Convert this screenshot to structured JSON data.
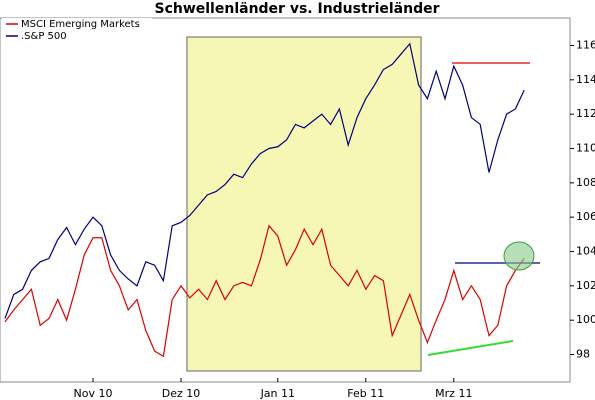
{
  "chart_data": {
    "type": "line",
    "title": "Schwellenländer vs. Industrieländer",
    "categories": [
      null,
      null,
      null,
      null,
      null,
      null,
      null,
      null,
      null,
      null,
      "Nov 10",
      null,
      null,
      null,
      null,
      null,
      null,
      null,
      null,
      null,
      "Dez 10",
      null,
      null,
      null,
      null,
      null,
      null,
      null,
      null,
      null,
      null,
      "Jan 11",
      null,
      null,
      null,
      null,
      null,
      null,
      null,
      null,
      null,
      "Feb 11",
      null,
      null,
      null,
      null,
      null,
      null,
      null,
      null,
      null,
      "Mrz 11",
      null,
      null,
      null,
      null,
      null,
      null,
      null,
      null
    ],
    "series": [
      {
        "name": "MSCI Emerging Markets",
        "color": "#dd0000",
        "values": [
          99.9,
          100.6,
          101.2,
          101.8,
          99.7,
          100.1,
          101.2,
          100.0,
          101.8,
          103.8,
          104.8,
          104.8,
          102.9,
          102.0,
          100.6,
          101.2,
          99.4,
          98.2,
          97.9,
          101.2,
          102.0,
          101.3,
          101.8,
          101.2,
          102.3,
          101.2,
          102.0,
          102.2,
          102.0,
          103.5,
          105.5,
          104.9,
          103.2,
          104.1,
          105.3,
          104.4,
          105.3,
          103.2,
          102.6,
          102.0,
          102.9,
          101.8,
          102.6,
          102.3,
          99.1,
          100.3,
          101.5,
          100.0,
          98.7,
          100.0,
          101.2,
          102.9,
          101.2,
          102.0,
          101.2,
          99.1,
          99.7,
          102.0,
          102.9,
          103.6
        ]
      },
      {
        "name": ".S&P 500",
        "color": "#000080",
        "values": [
          100.1,
          101.5,
          101.8,
          102.9,
          103.4,
          103.6,
          104.7,
          105.4,
          104.4,
          105.3,
          106.0,
          105.5,
          103.8,
          102.9,
          102.4,
          102.0,
          103.4,
          103.2,
          102.3,
          105.5,
          105.7,
          106.1,
          106.7,
          107.3,
          107.5,
          107.9,
          108.5,
          108.3,
          109.1,
          109.7,
          110.0,
          110.1,
          110.5,
          111.4,
          111.2,
          111.6,
          112.0,
          111.4,
          112.3,
          110.2,
          111.8,
          112.9,
          113.7,
          114.6,
          114.9,
          115.5,
          116.1,
          113.7,
          112.9,
          114.5,
          112.9,
          114.8,
          113.7,
          111.8,
          111.4,
          108.6,
          110.5,
          112.0,
          112.3,
          113.4
        ]
      }
    ],
    "ylim": [
      96.4,
      117.6
    ],
    "yticks": [
      98,
      100,
      102,
      104,
      106,
      108,
      110,
      112,
      114,
      116
    ]
  }
}
